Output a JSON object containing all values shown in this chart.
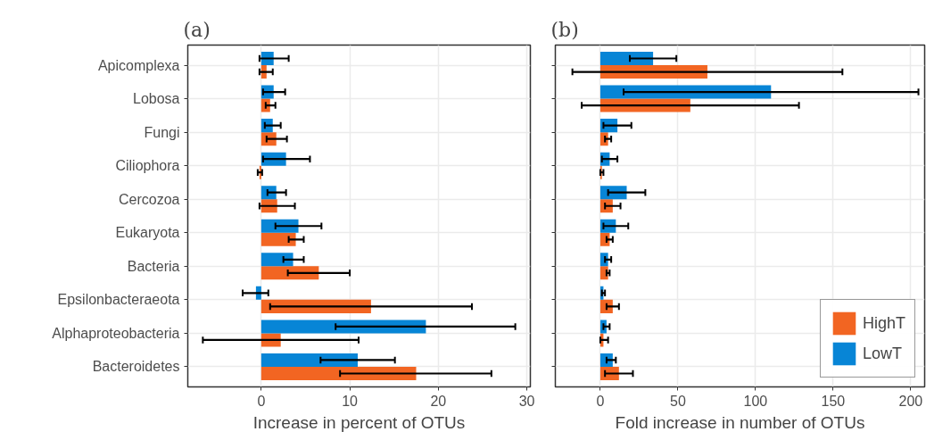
{
  "chart_data": [
    {
      "type": "bar",
      "orientation": "horizontal",
      "title": "(a)",
      "xlabel": "Increase in percent of OTUs",
      "categories": [
        "Apicomplexa",
        "Lobosa",
        "Fungi",
        "Ciliophora",
        "Cercozoa",
        "Eukaryota",
        "Bacteria",
        "Epsilonbacteraeota",
        "Alphaproteobacteria",
        "Bacteroidetes"
      ],
      "xlim": [
        -8.3,
        30.4
      ],
      "xticks": [
        0,
        10,
        20,
        30
      ],
      "grid": true,
      "legend": false,
      "series": [
        {
          "color": "#f26522",
          "values": [
            0.6,
            1.0,
            1.7,
            -0.2,
            1.8,
            3.9,
            6.5,
            12.4,
            2.2,
            17.5
          ],
          "errors": [
            [
              -0.2,
              1.3
            ],
            [
              0.5,
              1.6
            ],
            [
              0.6,
              2.9
            ],
            [
              -0.4,
              0.1
            ],
            [
              -0.2,
              3.8
            ],
            [
              3.1,
              4.8
            ],
            [
              3.0,
              10.0
            ],
            [
              1.0,
              23.8
            ],
            [
              -6.6,
              11.0
            ],
            [
              8.9,
              26.0
            ]
          ]
        },
        {
          "color": "#0785d6",
          "values": [
            1.4,
            1.4,
            1.3,
            2.8,
            1.7,
            4.2,
            3.6,
            -0.6,
            18.6,
            10.9
          ],
          "errors": [
            [
              -0.2,
              3.1
            ],
            [
              0.2,
              2.7
            ],
            [
              0.4,
              2.2
            ],
            [
              0.2,
              5.5
            ],
            [
              0.7,
              2.8
            ],
            [
              1.6,
              6.8
            ],
            [
              2.5,
              4.8
            ],
            [
              -2.1,
              0.8
            ],
            [
              8.4,
              28.7
            ],
            [
              6.7,
              15.1
            ]
          ]
        }
      ]
    },
    {
      "type": "bar",
      "orientation": "horizontal",
      "title": "(b)",
      "xlabel": "Fold increase in number of OTUs",
      "categories": [
        null,
        null,
        null,
        null,
        null,
        null,
        null,
        null,
        null,
        null
      ],
      "tick_labels": "x",
      "xlim": [
        -29,
        209
      ],
      "xticks": [
        0,
        50,
        100,
        150,
        200
      ],
      "grid": true,
      "legend": "bottom right",
      "series": [
        {
          "name": "HighT",
          "color": "#f26522",
          "values": [
            69,
            58,
            5,
            1,
            8,
            6,
            5,
            8,
            2,
            12
          ],
          "errors": [
            [
              -18,
              156
            ],
            [
              -12,
              128
            ],
            [
              3,
              7
            ],
            [
              0,
              2
            ],
            [
              3,
              13
            ],
            [
              4,
              8
            ],
            [
              4,
              6
            ],
            [
              4,
              12
            ],
            [
              0,
              5
            ],
            [
              3,
              21
            ]
          ]
        },
        {
          "name": "LowT",
          "color": "#0785d6",
          "values": [
            34,
            110,
            11,
            6,
            17,
            10,
            5,
            2,
            4,
            8
          ],
          "errors": [
            [
              19,
              49
            ],
            [
              15,
              205
            ],
            [
              2,
              20
            ],
            [
              1,
              11
            ],
            [
              5,
              29
            ],
            [
              2,
              18
            ],
            [
              3,
              7
            ],
            [
              1,
              3
            ],
            [
              2,
              6
            ],
            [
              4,
              10
            ]
          ]
        }
      ]
    }
  ]
}
